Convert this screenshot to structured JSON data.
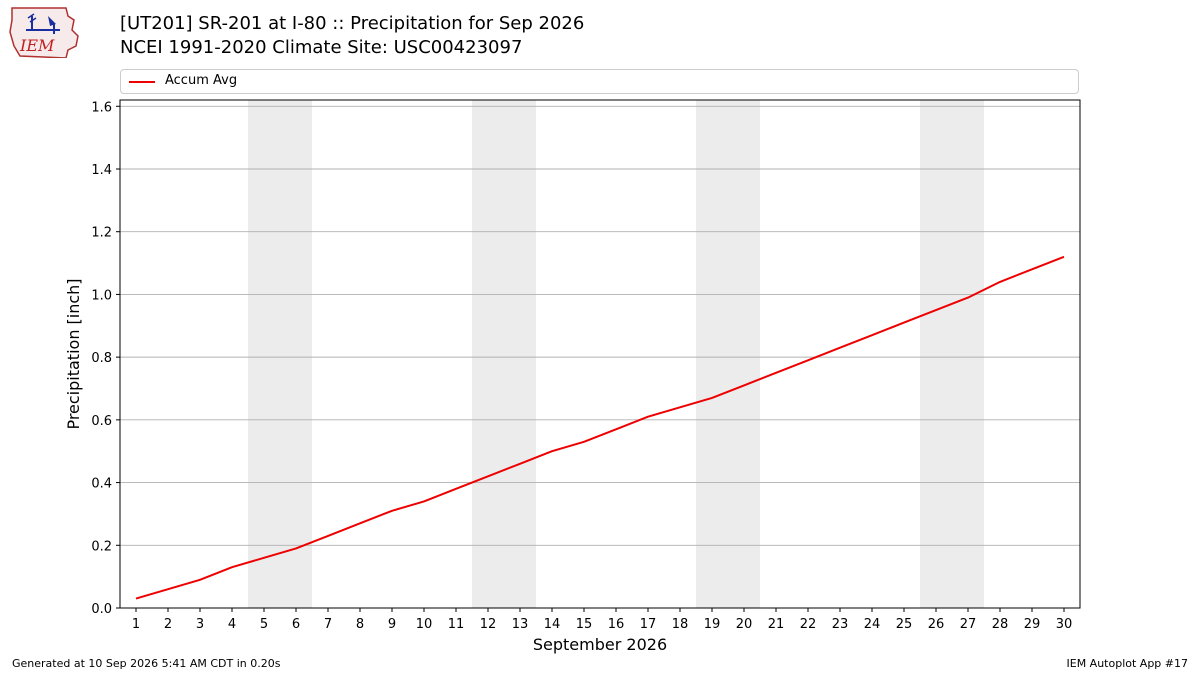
{
  "logo": {
    "text": "IEM"
  },
  "title_line1": "[UT201] SR-201 at I-80  :: Precipitation for Sep 2026",
  "title_line2": "NCEI 1991-2020 Climate Site: USC00423097",
  "footer": {
    "generated": "Generated at 10 Sep 2026 5:41 AM CDT in 0.20s",
    "app": "IEM Autoplot App #17"
  },
  "colors": {
    "line": "#ee0000",
    "weekend_band": "#ececec",
    "grid": "#b0b0b0"
  },
  "chart_data": {
    "type": "line",
    "xlabel": "September 2026",
    "ylabel": "Precipitation [inch]",
    "xlim": [
      0.5,
      30.5
    ],
    "ylim": [
      0,
      1.62
    ],
    "x": [
      1,
      2,
      3,
      4,
      5,
      6,
      7,
      8,
      9,
      10,
      11,
      12,
      13,
      14,
      15,
      16,
      17,
      18,
      19,
      20,
      21,
      22,
      23,
      24,
      25,
      26,
      27,
      28,
      29,
      30
    ],
    "xticks": [
      "1",
      "2",
      "3",
      "4",
      "5",
      "6",
      "7",
      "8",
      "9",
      "10",
      "11",
      "12",
      "13",
      "14",
      "15",
      "16",
      "17",
      "18",
      "19",
      "20",
      "21",
      "22",
      "23",
      "24",
      "25",
      "26",
      "27",
      "28",
      "29",
      "30"
    ],
    "yticks": [
      "0.0",
      "0.2",
      "0.4",
      "0.6",
      "0.8",
      "1.0",
      "1.2",
      "1.4",
      "1.6"
    ],
    "grid": true,
    "legend_position": "top",
    "weekend_bands": [
      [
        5,
        6
      ],
      [
        12,
        13
      ],
      [
        19,
        20
      ],
      [
        26,
        27
      ]
    ],
    "series": [
      {
        "name": "Accum Avg",
        "values": [
          0.03,
          0.06,
          0.09,
          0.13,
          0.16,
          0.19,
          0.23,
          0.27,
          0.31,
          0.34,
          0.38,
          0.42,
          0.46,
          0.5,
          0.53,
          0.57,
          0.61,
          0.64,
          0.67,
          0.71,
          0.75,
          0.79,
          0.83,
          0.87,
          0.91,
          0.95,
          0.99,
          1.04,
          1.08,
          1.12
        ]
      }
    ]
  }
}
